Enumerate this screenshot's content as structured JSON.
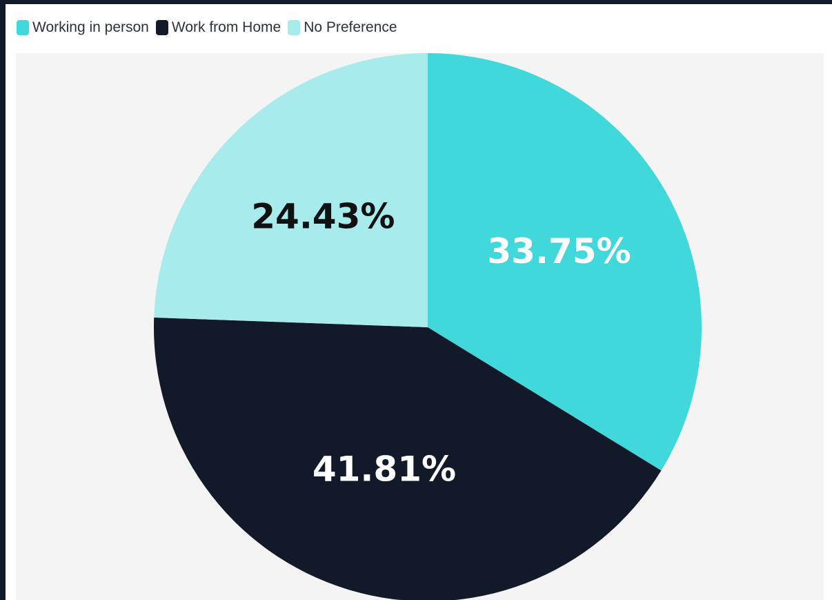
{
  "chart_data": {
    "type": "pie",
    "legend_placement": "top-left",
    "categories": [
      "Working in person",
      "Work from Home",
      "No Preference"
    ],
    "values": [
      33.75,
      41.81,
      24.43
    ],
    "labels": [
      "33.75%",
      "41.81%",
      "24.43%"
    ],
    "colors": [
      "#40d8da",
      "#121a2a",
      "#a8ebed"
    ],
    "label_colors": [
      "#ffffff",
      "#ffffff",
      "#111111"
    ],
    "start_angle_deg": 0,
    "direction": "clockwise"
  },
  "legend": {
    "items": [
      {
        "label": "Working in person",
        "color": "#40d8da"
      },
      {
        "label": "Work from Home",
        "color": "#121a2a"
      },
      {
        "label": "No Preference",
        "color": "#a8ebed"
      }
    ]
  }
}
